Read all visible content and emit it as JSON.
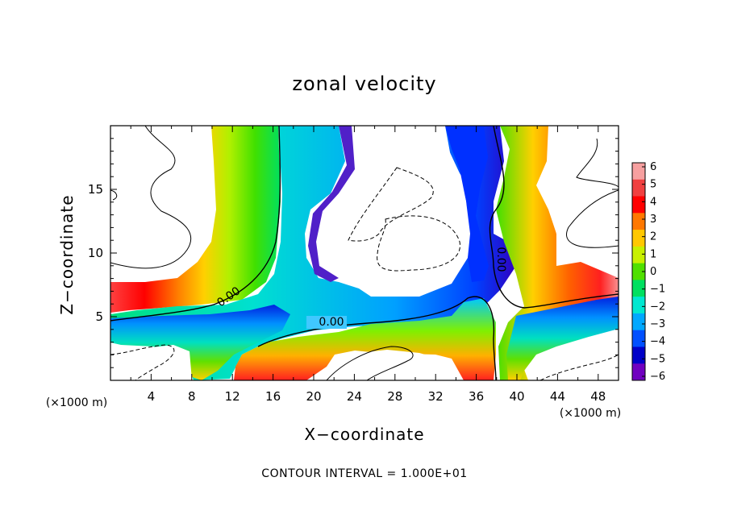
{
  "chart_data": {
    "type": "heatmap",
    "title": "zonal velocity",
    "xlabel": "X−coordinate",
    "ylabel": "Z−coordinate",
    "x_unit_label": "(×1000 m)",
    "z_unit_label": "(×1000 m)",
    "xlim": [
      0,
      50
    ],
    "ylim": [
      0,
      20
    ],
    "x_ticks": [
      4,
      8,
      12,
      16,
      20,
      24,
      28,
      32,
      36,
      40,
      44,
      48
    ],
    "y_ticks": [
      5,
      10,
      15
    ],
    "colorbar": {
      "levels": [
        6,
        5,
        4,
        3,
        2,
        1,
        0,
        -1,
        -2,
        -3,
        -4,
        -5,
        -6
      ],
      "labels": [
        "6",
        "5",
        "4",
        "3",
        "2",
        "1",
        "0",
        "−1",
        "−2",
        "−3",
        "−4",
        "−5",
        "−6"
      ],
      "colors": [
        "#f7a0a0",
        "#f04040",
        "#ff0000",
        "#ff7800",
        "#ffc800",
        "#c8f000",
        "#50e000",
        "#00e060",
        "#00e8d0",
        "#00a8ff",
        "#0050ff",
        "#0000c8",
        "#7000c0"
      ]
    },
    "contour_labels": [
      "0.00",
      "0.00",
      "0.00"
    ],
    "footer": "CONTOUR INTERVAL = 1.000E+01"
  }
}
